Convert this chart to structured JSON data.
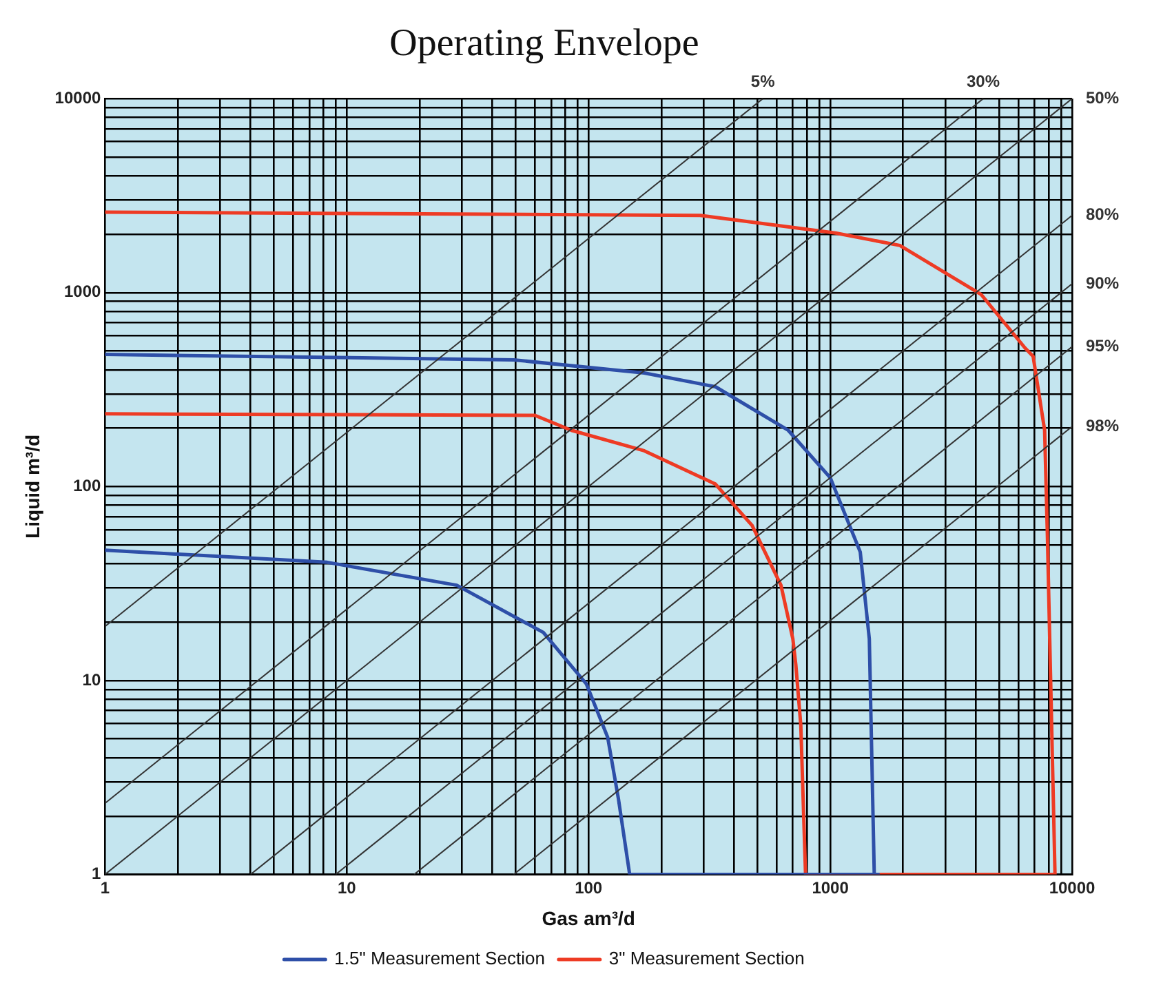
{
  "chart_data": {
    "type": "line",
    "title": "Operating Envelope",
    "xlabel": "Gas am³/d",
    "ylabel": "Liquid m³/d",
    "log": "xy",
    "grid": true,
    "legend": "bottom",
    "line_style": "solid",
    "marker": "none",
    "xlim": [
      1,
      10000
    ],
    "ylim": [
      1,
      10000
    ],
    "xticks": [
      1,
      {
        "value": 2,
        "label": null
      },
      {
        "value": 3,
        "label": null
      },
      {
        "value": 4,
        "label": null
      },
      {
        "value": 5,
        "label": null
      },
      {
        "value": 6,
        "label": null
      },
      {
        "value": 7,
        "label": null
      },
      {
        "value": 8,
        "label": null
      },
      {
        "value": 9,
        "label": null
      },
      10,
      {
        "value": 20,
        "label": null
      },
      {
        "value": 30,
        "label": null
      },
      {
        "value": 40,
        "label": null
      },
      {
        "value": 50,
        "label": null
      },
      {
        "value": 60,
        "label": null
      },
      {
        "value": 70,
        "label": null
      },
      {
        "value": 80,
        "label": null
      },
      {
        "value": 90,
        "label": null
      },
      100,
      {
        "value": 200,
        "label": null
      },
      {
        "value": 300,
        "label": null
      },
      {
        "value": 400,
        "label": null
      },
      {
        "value": 500,
        "label": null
      },
      {
        "value": 600,
        "label": null
      },
      {
        "value": 700,
        "label": null
      },
      {
        "value": 800,
        "label": null
      },
      {
        "value": 900,
        "label": null
      },
      1000,
      {
        "value": 2000,
        "label": null
      },
      {
        "value": 3000,
        "label": null
      },
      {
        "value": 4000,
        "label": null
      },
      {
        "value": 5000,
        "label": null
      },
      {
        "value": 6000,
        "label": null
      },
      {
        "value": 7000,
        "label": null
      },
      {
        "value": 8000,
        "label": null
      },
      {
        "value": 9000,
        "label": null
      },
      10000
    ],
    "yticks": [
      1,
      {
        "value": 2,
        "label": null
      },
      {
        "value": 3,
        "label": null
      },
      {
        "value": 4,
        "label": null
      },
      {
        "value": 5,
        "label": null
      },
      {
        "value": 6,
        "label": null
      },
      {
        "value": 7,
        "label": null
      },
      {
        "value": 8,
        "label": null
      },
      {
        "value": 9,
        "label": null
      },
      10,
      {
        "value": 20,
        "label": null
      },
      {
        "value": 30,
        "label": null
      },
      {
        "value": 40,
        "label": null
      },
      {
        "value": 50,
        "label": null
      },
      {
        "value": 60,
        "label": null
      },
      {
        "value": 70,
        "label": null
      },
      {
        "value": 80,
        "label": null
      },
      {
        "value": 90,
        "label": null
      },
      100,
      {
        "value": 200,
        "label": null
      },
      {
        "value": 300,
        "label": null
      },
      {
        "value": 400,
        "label": null
      },
      {
        "value": 500,
        "label": null
      },
      {
        "value": 600,
        "label": null
      },
      {
        "value": 700,
        "label": null
      },
      {
        "value": 800,
        "label": null
      },
      {
        "value": 900,
        "label": null
      },
      1000,
      {
        "value": 2000,
        "label": null
      },
      {
        "value": 3000,
        "label": null
      },
      {
        "value": 4000,
        "label": null
      },
      {
        "value": 5000,
        "label": null
      },
      {
        "value": 6000,
        "label": null
      },
      {
        "value": 7000,
        "label": null
      },
      {
        "value": 8000,
        "label": null
      },
      {
        "value": 9000,
        "label": null
      },
      10000
    ],
    "annotations": [
      {
        "text": "5%",
        "x": 526,
        "y": 10000
      },
      {
        "text": "30%",
        "x": 4290,
        "y": 10000
      },
      {
        "text": "50%",
        "x": 10000,
        "y": 10000
      },
      {
        "text": "80%",
        "x": 10000,
        "y": 2500
      },
      {
        "text": "90%",
        "x": 10000,
        "y": 1111
      },
      {
        "text": "95%",
        "x": 10000,
        "y": 526
      },
      {
        "text": "98%",
        "x": 10000,
        "y": 204
      }
    ],
    "series": [
      {
        "color": "#333333",
        "x": [
          1,
          526
        ],
        "values": [
          19,
          10000
        ]
      },
      {
        "color": "#333333",
        "x": [
          1,
          4290
        ],
        "values": [
          2.33,
          10000
        ]
      },
      {
        "color": "#333333",
        "x": [
          1,
          10000
        ],
        "values": [
          1,
          10000
        ]
      },
      {
        "color": "#333333",
        "x": [
          4,
          10000
        ],
        "values": [
          1,
          2500
        ]
      },
      {
        "color": "#333333",
        "x": [
          9,
          10000
        ],
        "values": [
          1,
          1111
        ]
      },
      {
        "color": "#333333",
        "x": [
          19,
          10000
        ],
        "values": [
          1,
          526
        ]
      },
      {
        "color": "#333333",
        "x": [
          49,
          10000
        ],
        "values": [
          1,
          204
        ]
      },
      {
        "name": "1.5\" Measurement Section",
        "color": "#2e4fa8",
        "x": [
          1,
          8.3,
          28.5,
          65,
          98,
          120,
          133,
          148,
          1580,
          1520,
          1450,
          1330,
          1000,
          670,
          335,
          170,
          49,
          1
        ],
        "values": [
          47,
          40.7,
          31,
          17.7,
          9.6,
          5.1,
          2.45,
          1,
          1,
          1,
          16.4,
          46,
          111,
          195,
          327,
          385,
          450,
          480
        ]
      },
      {
        "name": "3\" Measurement Section",
        "color": "#ee3b24",
        "x": [
          1,
          60,
          85,
          170,
          335,
          475,
          625,
          700,
          720,
          755,
          790,
          8500,
          7900,
          7700,
          6900,
          6400,
          4200,
          1940,
          1050,
          290,
          1
        ],
        "values": [
          237,
          233,
          195,
          153,
          103,
          63,
          31,
          16.4,
          12.1,
          5.9,
          1,
          1,
          58,
          195,
          470,
          517,
          980,
          1750,
          2030,
          2500,
          2600
        ]
      }
    ]
  }
}
